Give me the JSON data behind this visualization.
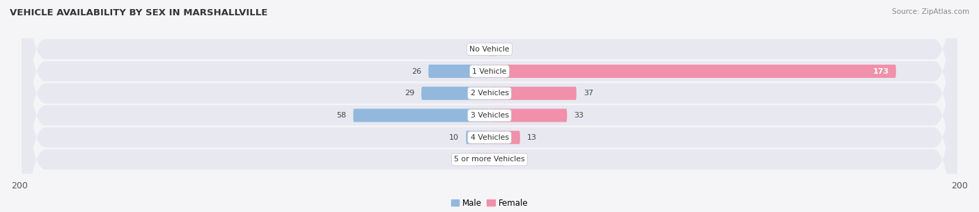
{
  "title": "VEHICLE AVAILABILITY BY SEX IN MARSHALLVILLE",
  "source": "Source: ZipAtlas.com",
  "categories": [
    "No Vehicle",
    "1 Vehicle",
    "2 Vehicles",
    "3 Vehicles",
    "4 Vehicles",
    "5 or more Vehicles"
  ],
  "male_values": [
    0,
    26,
    29,
    58,
    10,
    6
  ],
  "female_values": [
    3,
    173,
    37,
    33,
    13,
    6
  ],
  "male_color": "#92b8de",
  "female_color": "#f090aa",
  "bar_bg_color": "#e8e8f0",
  "xlim": 200,
  "figsize": [
    14.06,
    3.05
  ],
  "dpi": 100,
  "label_color": "#444444",
  "title_color": "#333333",
  "bg_color": "#f5f5f8",
  "legend_male": "Male",
  "legend_female": "Female"
}
